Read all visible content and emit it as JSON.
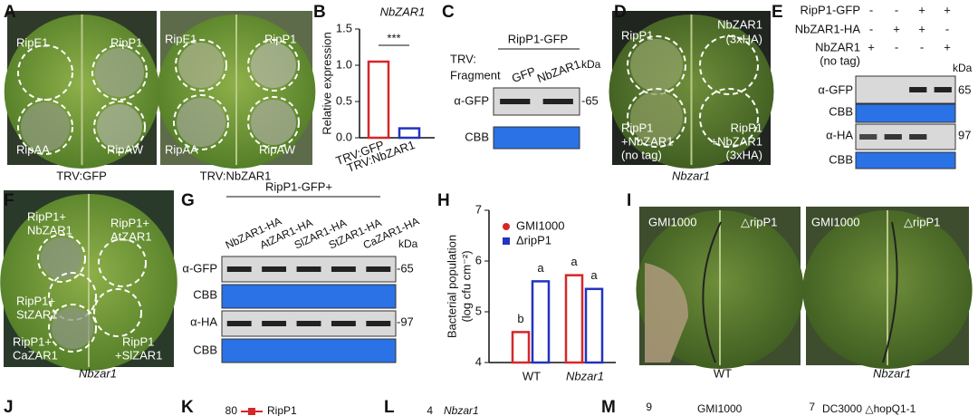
{
  "letters": [
    "A",
    "B",
    "C",
    "D",
    "E",
    "F",
    "G",
    "H",
    "I",
    "J",
    "K",
    "L",
    "M"
  ],
  "A": {
    "left": {
      "spots": [
        "RipE1",
        "RipP1",
        "RipAA",
        "RipAW"
      ],
      "caption": "TRV:GFP"
    },
    "right": {
      "spots": [
        "RipE1",
        "RipP1",
        "RipAA",
        "RipAW"
      ],
      "caption": "TRV:NbZAR1"
    }
  },
  "C": {
    "construct": "RipP1-GFP",
    "row_label": [
      "TRV:",
      "Fragment"
    ],
    "lanes": [
      "GFP",
      "NbZAR1"
    ],
    "blots": [
      "α-GFP",
      "CBB"
    ],
    "unit": "kDa",
    "marker": "-65"
  },
  "D": {
    "spots": [
      "RipP1",
      "NbZAR1",
      "(3xHA)",
      "RipP1",
      "+NbZAR1",
      "(no tag)",
      "RipP1",
      "+NbZAR1",
      "(3xHA)"
    ],
    "caption": "Nbzar1"
  },
  "E": {
    "rows": [
      {
        "label": "RipP1-GFP",
        "signs": [
          "-",
          "-",
          "+",
          "+"
        ]
      },
      {
        "label": "NbZAR1-HA",
        "signs": [
          "-",
          "+",
          "+",
          "-"
        ]
      },
      {
        "label": "NbZAR1",
        "signs": [
          "+",
          "-",
          "-",
          "+"
        ]
      }
    ],
    "note": "(no tag)",
    "unit": "kDa",
    "blots": [
      "α-GFP",
      "CBB",
      "α-HA",
      "CBB"
    ],
    "markers": [
      "65",
      "97"
    ]
  },
  "F": {
    "spots": [
      "RipP1+",
      "NbZAR1",
      "RipP1+",
      "AtZAR1",
      "RipP1+",
      "StZAR1",
      "RipP1+",
      "CaZAR1",
      "RipP1",
      "+SlZAR1"
    ],
    "caption": "Nbzar1"
  },
  "G": {
    "construct": "RipP1-GFP+",
    "lanes": [
      "NbZAR1-HA",
      "AtZAR1-HA",
      "SlZAR1-HA",
      "StZAR1-HA",
      "CaZAR1-HA"
    ],
    "unit": "kDa",
    "blots": [
      "α-GFP",
      "CBB",
      "α-HA",
      "CBB"
    ],
    "markers": [
      "-65",
      "-97"
    ]
  },
  "I": {
    "left": [
      "GMI1000",
      "△ripP1"
    ],
    "right": [
      "GMI1000",
      "△ripP1"
    ],
    "captions": [
      "WT",
      "Nbzar1"
    ]
  },
  "K": {
    "tick": 80,
    "legend": "RipP1"
  },
  "L": {
    "tick": 4,
    "title": "Nbzar1"
  },
  "M": {
    "ticks": [
      9,
      7
    ],
    "titles": [
      "GMI1000",
      "DC3000 △hopQ1-1"
    ]
  },
  "chart_data": [
    {
      "type": "bar",
      "title": "NbZAR1",
      "ylabel": "Relative expression",
      "categories": [
        "TRV:GFP",
        "TRV:NbZAR1"
      ],
      "values": [
        1.05,
        0.13
      ],
      "colors": [
        "#d62728",
        "#2233c0"
      ],
      "ylim": [
        0,
        1.5
      ],
      "yticks": [
        {
          "value": 0,
          "label": "0.0"
        },
        {
          "value": 0.5,
          "label": "0.5"
        },
        {
          "value": 1,
          "label": "1.0"
        },
        {
          "value": 1.5,
          "label": "1.5"
        }
      ],
      "annotations": [
        "***"
      ]
    },
    {
      "type": "bar",
      "ylabel": [
        "Bacterial population",
        "(log cfu cm⁻²)"
      ],
      "categories": [
        "WT",
        "Nbzar1"
      ],
      "series": [
        {
          "name": "GMI1000",
          "color": "#d62728",
          "values": [
            4.6,
            5.72
          ]
        },
        {
          "name": "ΔripP1",
          "color": "#2233c0",
          "values": [
            5.6,
            5.45
          ]
        }
      ],
      "ylim": [
        4,
        7
      ],
      "yticks": [
        4,
        5,
        6,
        7
      ],
      "annotations": [
        "b",
        "a",
        "a",
        "a"
      ]
    }
  ]
}
